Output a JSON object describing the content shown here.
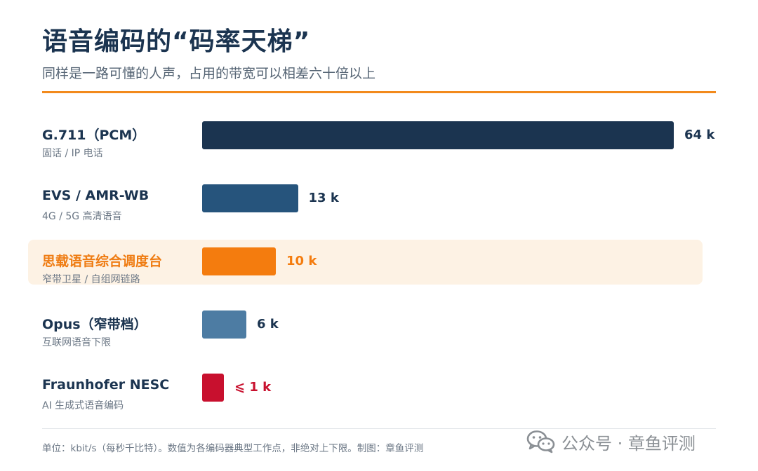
{
  "header": {
    "title": "语音编码的“码率天梯”",
    "subtitle": "同样是一路可懂的人声，占用的带宽可以相差六十倍以上"
  },
  "rows": [
    {
      "name": "G.711（PCM）",
      "desc": "固话 / IP 电话",
      "label": "64 k"
    },
    {
      "name": "EVS / AMR-WB",
      "desc": "4G / 5G 高清语音",
      "label": "13 k"
    },
    {
      "name": "思载语音综合调度台",
      "desc": "窄带卫星 / 自组网链路",
      "label": "10 k"
    },
    {
      "name": "Opus（窄带档）",
      "desc": "互联网语音下限",
      "label": "6 k"
    },
    {
      "name": "Fraunhofer NESC",
      "desc": "AI 生成式语音编码",
      "label": "⩽ 1 k"
    }
  ],
  "chart_data": {
    "type": "bar",
    "orientation": "horizontal",
    "title": "语音编码的“码率天梯”",
    "subtitle": "同样是一路可懂的人声，占用的带宽可以相差六十倍以上",
    "unit": "kbit/s",
    "categories": [
      "G.711（PCM）",
      "EVS / AMR-WB",
      "思载语音综合调度台",
      "Opus（窄带档）",
      "Fraunhofer NESC"
    ],
    "values": [
      64,
      13,
      10,
      6,
      1
    ],
    "value_labels": [
      "64 k",
      "13 k",
      "10 k",
      "6 k",
      "⩽ 1 k"
    ],
    "colors": [
      "#1b3450",
      "#26547c",
      "#f47c0e",
      "#4d7ca3",
      "#c8102e"
    ],
    "label_colors": [
      "#1b3450",
      "#1b3450",
      "#f47c0e",
      "#1b3450",
      "#c8102e"
    ],
    "highlight_index": 2,
    "highlight_color": "#fdf2e4",
    "rule_color": "#f28a1c",
    "xlim": [
      0,
      64
    ],
    "grid": false,
    "legend": "none"
  },
  "footnote": "单位：kbit/s（每秒千比特）。数值为各编码器典型工作点，非绝对上下限。制图：章鱼评测",
  "watermark": {
    "icon": "wechat-icon",
    "text": "公众号 · 章鱼评测"
  }
}
